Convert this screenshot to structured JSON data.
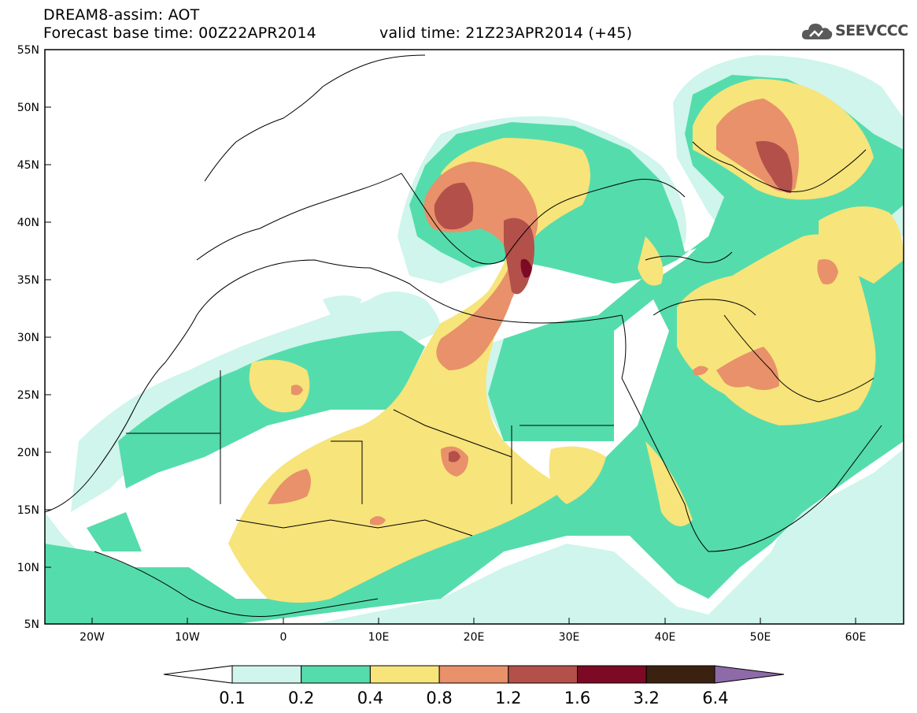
{
  "header": {
    "title": "DREAM8-assim: AOT",
    "base_time": "Forecast base time: 00Z22APR2014",
    "valid_time": "valid time: 21Z23APR2014 (+45)"
  },
  "logo": {
    "text": "SEEVCCC",
    "icon": "cloud-icon"
  },
  "map": {
    "variable": "AOT",
    "lon_range": [
      -25,
      65
    ],
    "lat_range": [
      5,
      55
    ],
    "lat_ticks": [
      "55N",
      "50N",
      "45N",
      "40N",
      "35N",
      "30N",
      "25N",
      "20N",
      "15N",
      "10N",
      "5N"
    ],
    "lon_ticks": [
      "20W",
      "10W",
      "0",
      "10E",
      "20E",
      "30E",
      "40E",
      "50E",
      "60E"
    ]
  },
  "legend": {
    "levels": [
      "0.1",
      "0.2",
      "0.4",
      "0.8",
      "1.2",
      "1.6",
      "3.2",
      "6.4"
    ],
    "colors": [
      "#cff5ec",
      "#55dcac",
      "#f7e47a",
      "#e8916a",
      "#b3504a",
      "#7c0a25",
      "#3b2210",
      "#8e6aa8"
    ]
  }
}
